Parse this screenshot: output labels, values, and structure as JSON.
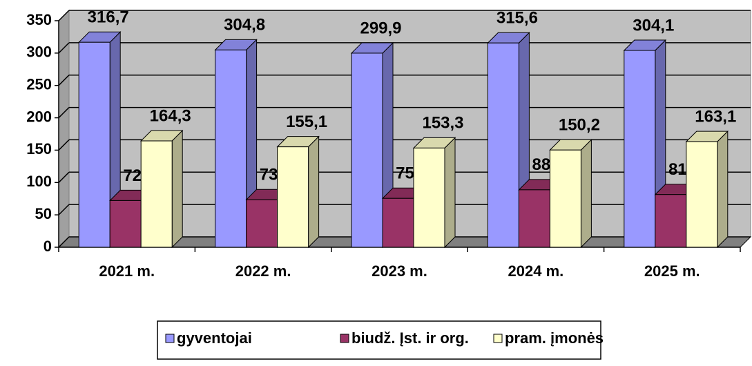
{
  "chart_data": {
    "type": "bar3d",
    "categories": [
      "2021 m.",
      "2022 m.",
      "2023 m.",
      "2024 m.",
      "2025 m."
    ],
    "series": [
      {
        "name": "gyventojai",
        "color": "#9999ff",
        "values": [
          316.7,
          304.8,
          299.9,
          315.6,
          304.1
        ],
        "value_labels": [
          "316,7",
          "304,8",
          "299,9",
          "315,6",
          "304,1"
        ]
      },
      {
        "name": "biudž. Įst. ir org.",
        "color": "#993366",
        "values": [
          72.1,
          73.3,
          75.5,
          88.7,
          81.4
        ],
        "value_labels": [
          "72,1",
          "73,3",
          "75,5",
          "88,7",
          "81,4"
        ]
      },
      {
        "name": "pram. įmonės",
        "color": "#ffffcc",
        "values": [
          164.3,
          155.1,
          153.3,
          150.2,
          163.1
        ],
        "value_labels": [
          "164,3",
          "155,1",
          "153,3",
          "150,2",
          "163,1"
        ]
      }
    ],
    "ylim": [
      0,
      350
    ],
    "yticks": [
      0,
      50,
      100,
      150,
      200,
      250,
      300,
      350
    ],
    "grid": true,
    "legend": "bottom"
  }
}
